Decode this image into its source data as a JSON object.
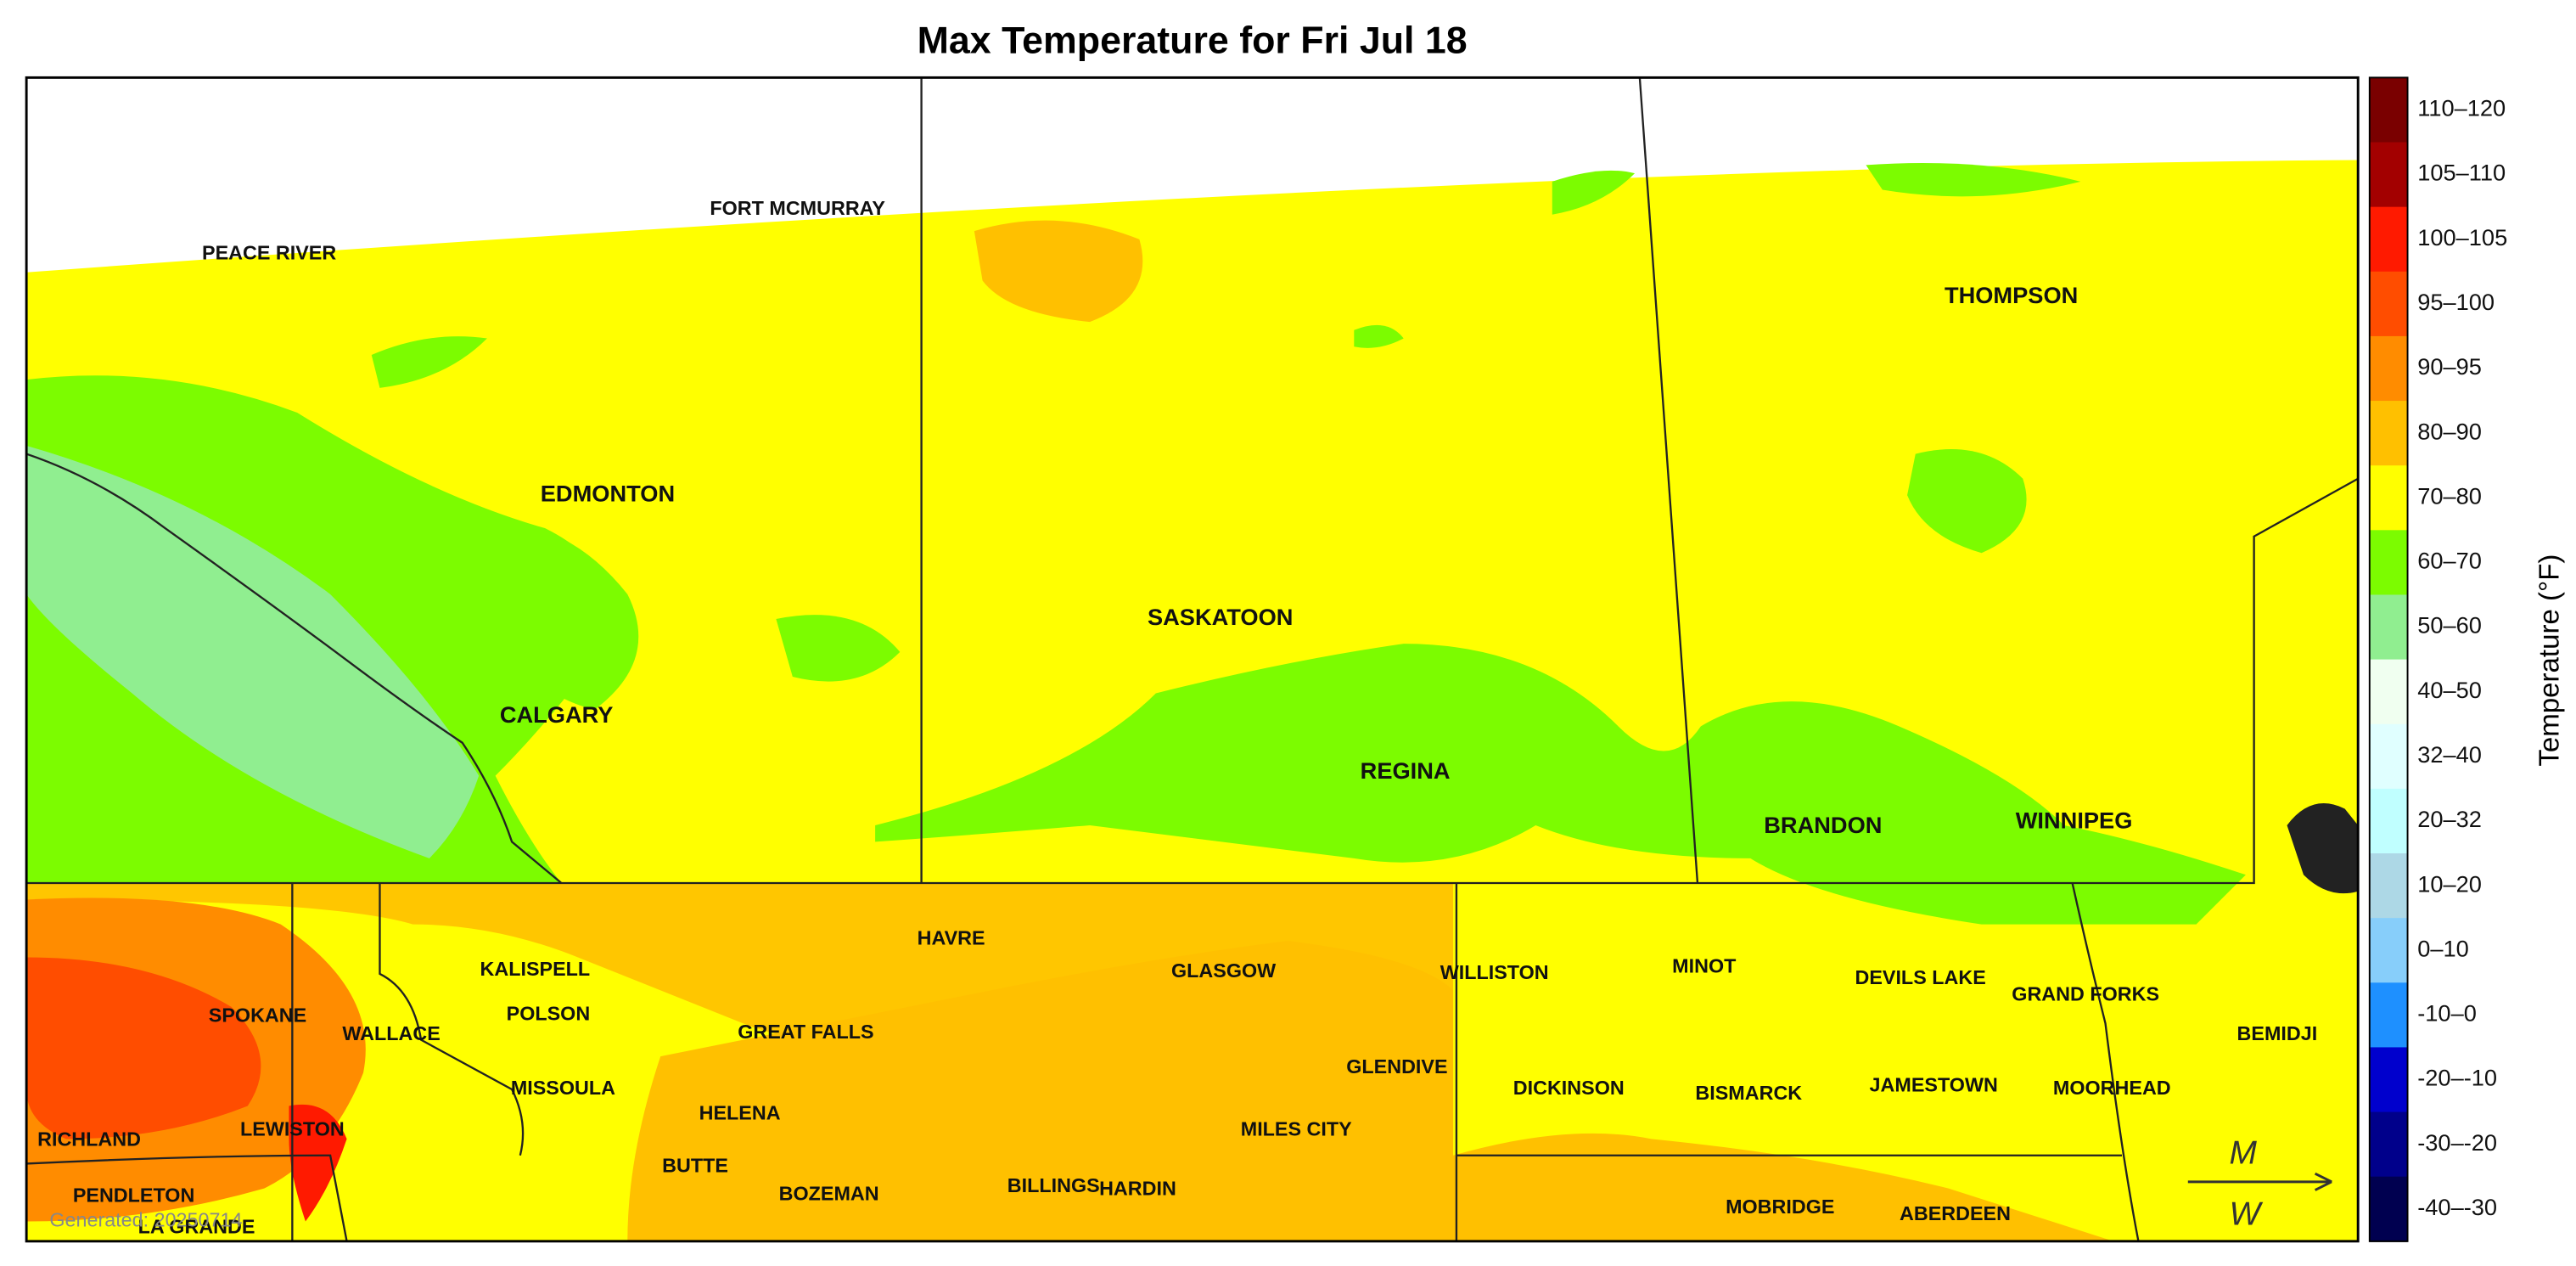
{
  "title": "Max Temperature for Fri Jul 18",
  "legend": {
    "title": "Temperature (°F)",
    "items": [
      {
        "label": "110–120",
        "color": "#7a0000"
      },
      {
        "label": "105–110",
        "color": "#a30000"
      },
      {
        "label": "100–105",
        "color": "#ff1a00"
      },
      {
        "label": "95–100",
        "color": "#ff4d00"
      },
      {
        "label": "90–95",
        "color": "#ff8c00"
      },
      {
        "label": "80–90",
        "color": "#ffc000"
      },
      {
        "label": "70–80",
        "color": "#ffff00"
      },
      {
        "label": "60–70",
        "color": "#7cfc00"
      },
      {
        "label": "50–60",
        "color": "#90ee90"
      },
      {
        "label": "40–50",
        "color": "#f0fff0"
      },
      {
        "label": "32–40",
        "color": "#e0ffff"
      },
      {
        "label": "20–32",
        "color": "#c0ffff"
      },
      {
        "label": "10–20",
        "color": "#add8e6"
      },
      {
        "label": "0–10",
        "color": "#87cefa"
      },
      {
        "label": "-10–0",
        "color": "#1e90ff"
      },
      {
        "label": "-20–-10",
        "color": "#0000cd"
      },
      {
        "label": "-30–-20",
        "color": "#00008b"
      },
      {
        "label": "-40–-30",
        "color": "#000050"
      }
    ]
  },
  "cities": [
    "PEACE RIVER",
    "FORT MCMURRAY",
    "EDMONTON",
    "CALGARY",
    "SASKATOON",
    "REGINA",
    "THOMPSON",
    "BRANDON",
    "WINNIPEG",
    "HAVRE",
    "GLASGOW",
    "WILLISTON",
    "MINOT",
    "DEVILS LAKE",
    "GRAND FORKS",
    "BEMIDJI",
    "KALISPELL",
    "POLSON",
    "SPOKANE",
    "WALLACE",
    "GREAT FALLS",
    "GLENDIVE",
    "MISSOULA",
    "DICKINSON",
    "BISMARCK",
    "JAMESTOWN",
    "MOORHEAD",
    "HELENA",
    "MILES CITY",
    "RICHLAND",
    "LEWISTON",
    "BUTTE",
    "BOZEMAN",
    "BILLINGS",
    "HARDIN",
    "PENDLETON",
    "LA GRANDE",
    "MOBRIDGE",
    "ABERDEEN"
  ],
  "generated": "Generated: 20250714"
}
